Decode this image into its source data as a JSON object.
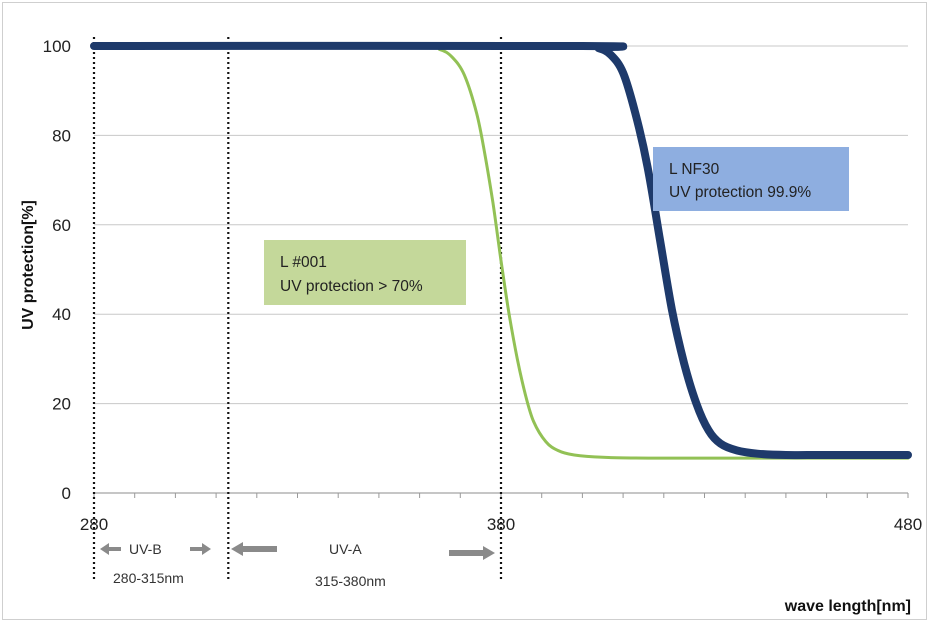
{
  "chart_data": {
    "type": "line",
    "xlabel": "wave length[nm]",
    "ylabel": "UV protection[%]",
    "xlim": [
      280,
      480
    ],
    "ylim": [
      0,
      100
    ],
    "x_ticks": [
      280,
      380,
      480
    ],
    "y_ticks": [
      0,
      20,
      40,
      60,
      80,
      100
    ],
    "grid": "horizontal",
    "series": [
      {
        "name": "L #001",
        "color": "#92c155",
        "x": [
          280,
          360,
          365,
          368,
          371,
          374,
          376,
          378,
          380,
          382,
          384,
          386,
          388,
          391,
          394,
          398,
          405,
          420,
          480
        ],
        "y": [
          99.7,
          99.7,
          99.2,
          97.5,
          93.5,
          85,
          76,
          65,
          52,
          40,
          30,
          22,
          16,
          11.5,
          9.5,
          8.5,
          8,
          7.8,
          7.8
        ]
      },
      {
        "name": "L NF30",
        "color": "#1e3a6b",
        "x": [
          280,
          400,
          404,
          407,
          410,
          413,
          416,
          419,
          422,
          425,
          428,
          431,
          434,
          438,
          443,
          450,
          460,
          480
        ],
        "y": [
          100,
          100,
          99.5,
          98,
          94,
          85,
          73,
          57,
          41,
          29,
          20,
          14,
          11,
          9.5,
          8.8,
          8.5,
          8.5,
          8.5
        ]
      }
    ],
    "annotations": [
      {
        "id": "lnf30",
        "line1": "L NF30",
        "line2": "UV protection 99.9%",
        "fill": "#8eaee0"
      },
      {
        "id": "l001",
        "line1": "L #001",
        "line2": "UV protection > 70%",
        "fill": "#c4d89a"
      }
    ],
    "reference_lines_x": [
      280,
      313,
      380
    ],
    "bands": [
      {
        "name": "UV-B",
        "range_label": "280-315nm"
      },
      {
        "name": "UV-A",
        "range_label": "315-380nm"
      }
    ]
  }
}
